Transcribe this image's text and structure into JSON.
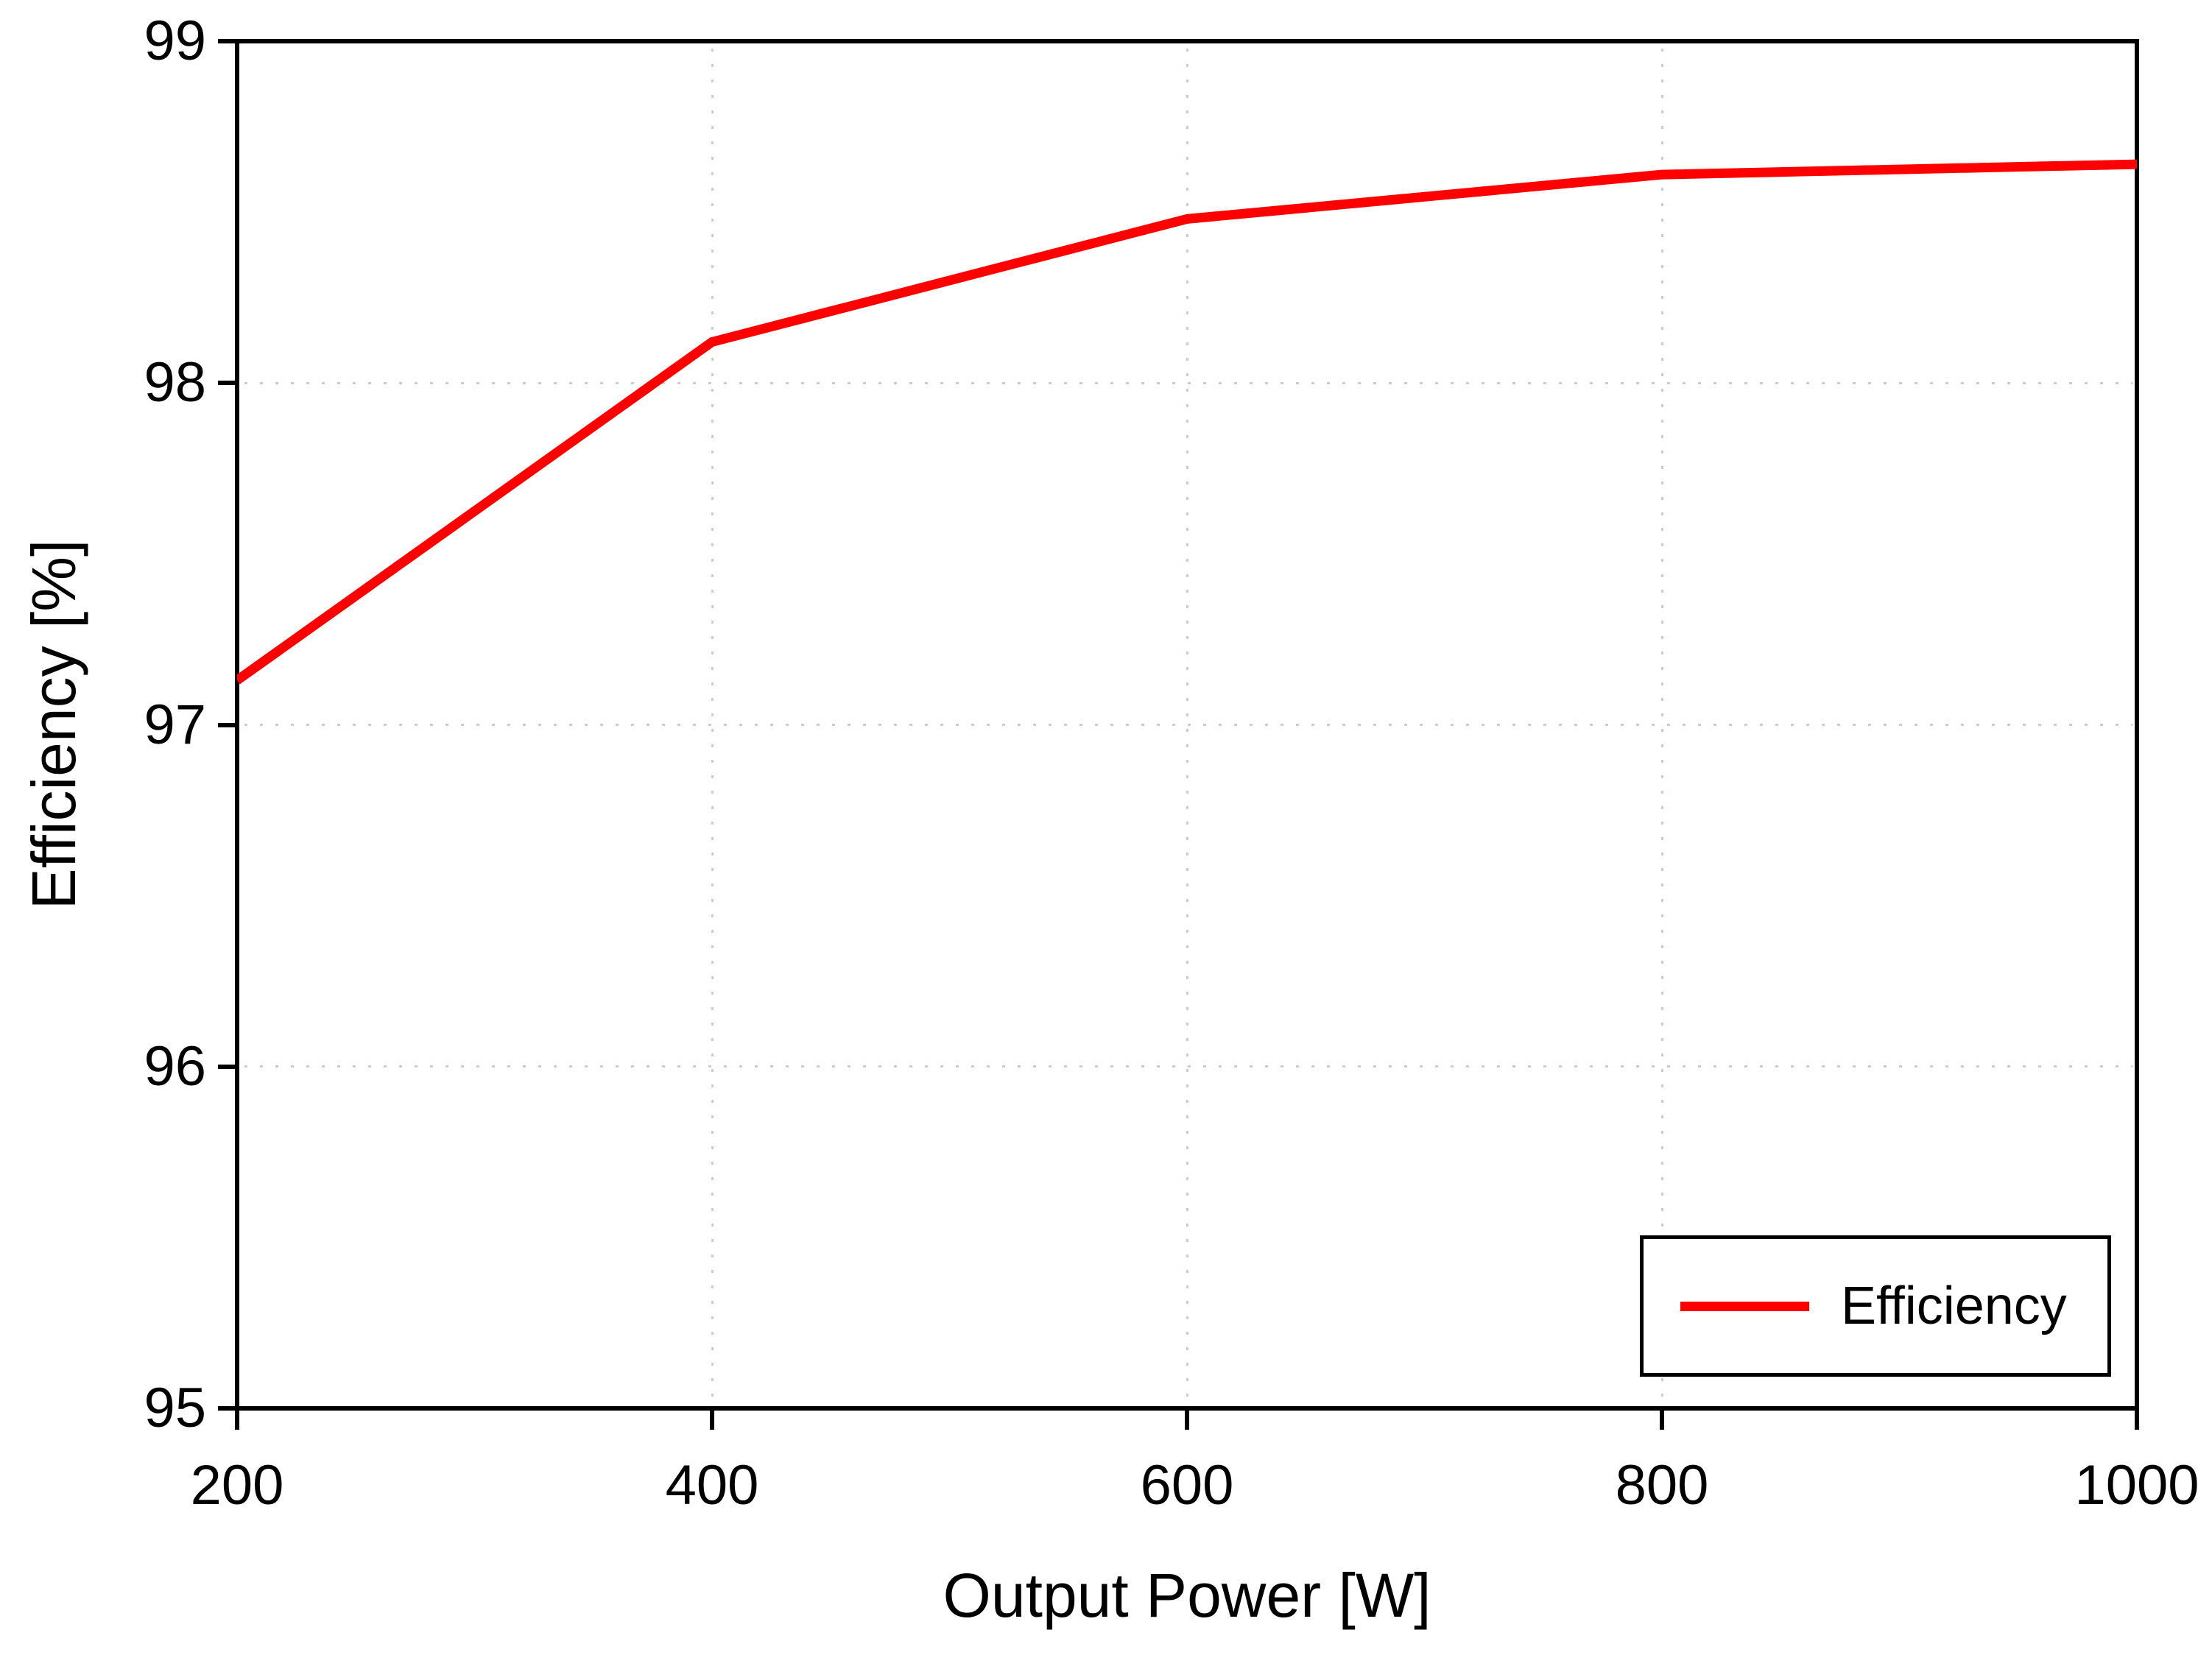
{
  "chart_data": {
    "type": "line",
    "title": "",
    "xlabel": "Output Power [W]",
    "ylabel": "Efficiency [%]",
    "x": [
      200,
      400,
      600,
      800,
      1000
    ],
    "series": [
      {
        "name": "Efficiency",
        "color": "#ff0000",
        "values": [
          97.13,
          98.12,
          98.48,
          98.61,
          98.64
        ]
      }
    ],
    "xlim": [
      200,
      1000
    ],
    "ylim": [
      95,
      99
    ],
    "x_ticks": [
      "200",
      "400",
      "600",
      "800",
      "1000"
    ],
    "x_tick_values": [
      200,
      400,
      600,
      800,
      1000
    ],
    "y_ticks": [
      "95",
      "96",
      "97",
      "98",
      "99"
    ],
    "y_tick_values": [
      95,
      96,
      97,
      98,
      99
    ],
    "grid": "dotted gridlines at interior major ticks",
    "legend_position": "lower right"
  },
  "legend": {
    "items": [
      {
        "label": "Efficiency",
        "color": "#ff0000"
      }
    ]
  },
  "colors": {
    "line": "#ff0000",
    "axis": "#000000",
    "grid": "#c2cddd",
    "background": "#ffffff"
  }
}
